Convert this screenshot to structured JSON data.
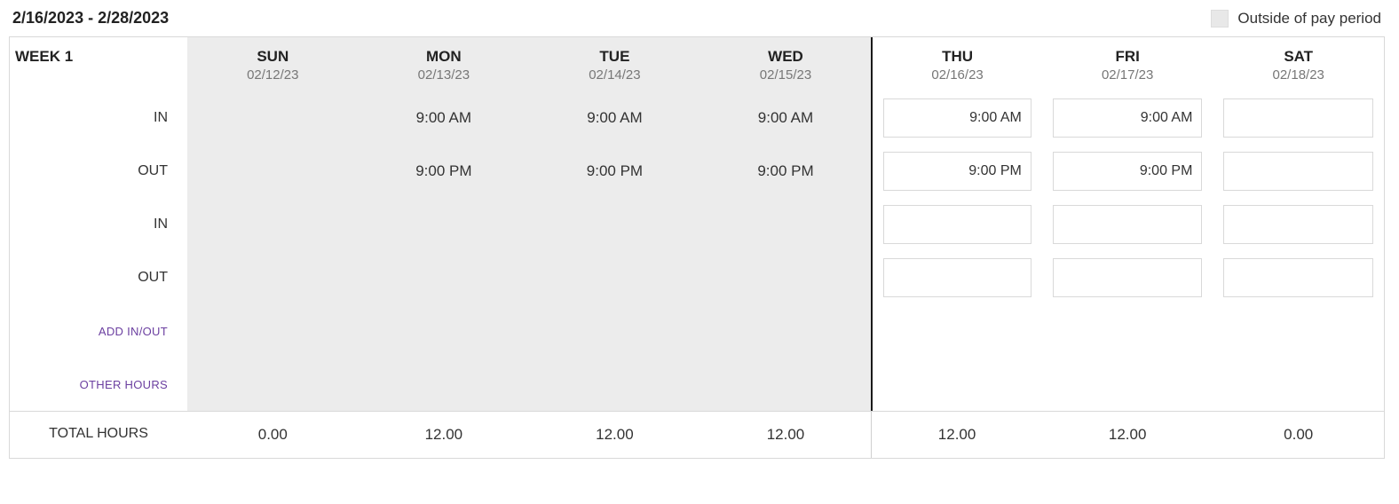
{
  "header": {
    "date_range": "2/16/2023 - 2/28/2023",
    "legend_label": "Outside of pay period",
    "legend_swatch_color": "#e8e8e8"
  },
  "colors": {
    "outside_bg": "#ececec",
    "border": "#d9d9d9",
    "pay_period_divider": "#1a1a1a",
    "link_color": "#6b3fa0",
    "text_primary": "#222222",
    "text_secondary": "#777777"
  },
  "week_label": "WEEK 1",
  "days": [
    {
      "abbr": "SUN",
      "date": "02/12/23",
      "outside": true,
      "editable": false,
      "in1": "",
      "out1": "",
      "in2": "",
      "out2": "",
      "total": "0.00"
    },
    {
      "abbr": "MON",
      "date": "02/13/23",
      "outside": true,
      "editable": false,
      "in1": "9:00 AM",
      "out1": "9:00 PM",
      "in2": "",
      "out2": "",
      "total": "12.00"
    },
    {
      "abbr": "TUE",
      "date": "02/14/23",
      "outside": true,
      "editable": false,
      "in1": "9:00 AM",
      "out1": "9:00 PM",
      "in2": "",
      "out2": "",
      "total": "12.00"
    },
    {
      "abbr": "WED",
      "date": "02/15/23",
      "outside": true,
      "editable": false,
      "in1": "9:00 AM",
      "out1": "9:00 PM",
      "in2": "",
      "out2": "",
      "total": "12.00"
    },
    {
      "abbr": "THU",
      "date": "02/16/23",
      "outside": false,
      "editable": true,
      "in1": "9:00 AM",
      "out1": "9:00 PM",
      "in2": "",
      "out2": "",
      "total": "12.00"
    },
    {
      "abbr": "FRI",
      "date": "02/17/23",
      "outside": false,
      "editable": true,
      "in1": "9:00 AM",
      "out1": "9:00 PM",
      "in2": "",
      "out2": "",
      "total": "12.00"
    },
    {
      "abbr": "SAT",
      "date": "02/18/23",
      "outside": false,
      "editable": true,
      "in1": "",
      "out1": "",
      "in2": "",
      "out2": "",
      "total": "0.00"
    }
  ],
  "row_labels": {
    "in1": "IN",
    "out1": "OUT",
    "in2": "IN",
    "out2": "OUT",
    "add_in_out": "ADD IN/OUT",
    "other_hours": "OTHER HOURS",
    "total_hours": "TOTAL HOURS"
  },
  "pay_period_start_index": 4
}
